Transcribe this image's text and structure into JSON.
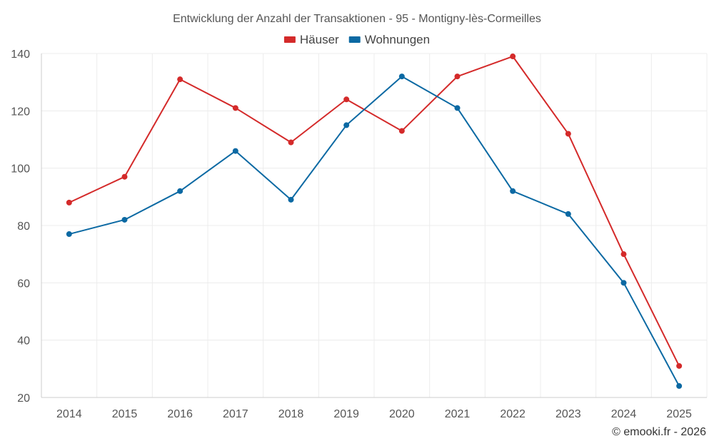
{
  "chart_data": {
    "type": "line",
    "title": "Entwicklung der Anzahl der Transaktionen - 95 - Montigny-lès-Cormeilles",
    "categories": [
      "2014",
      "2015",
      "2016",
      "2017",
      "2018",
      "2019",
      "2020",
      "2021",
      "2022",
      "2023",
      "2024",
      "2025"
    ],
    "series": [
      {
        "name": "Häuser",
        "color": "#d42a2a",
        "values": [
          88,
          97,
          131,
          121,
          109,
          124,
          113,
          132,
          139,
          112,
          70,
          31
        ]
      },
      {
        "name": "Wohnungen",
        "color": "#0b69a3",
        "values": [
          77,
          82,
          92,
          106,
          89,
          115,
          132,
          121,
          92,
          84,
          60,
          24
        ]
      }
    ],
    "ylim": [
      20,
      140
    ],
    "yticks": [
      20,
      40,
      60,
      80,
      100,
      120,
      140
    ],
    "xlabel": "",
    "ylabel": "",
    "grid": true,
    "legend_position": "top-center"
  },
  "credit": "© emooki.fr - 2026"
}
